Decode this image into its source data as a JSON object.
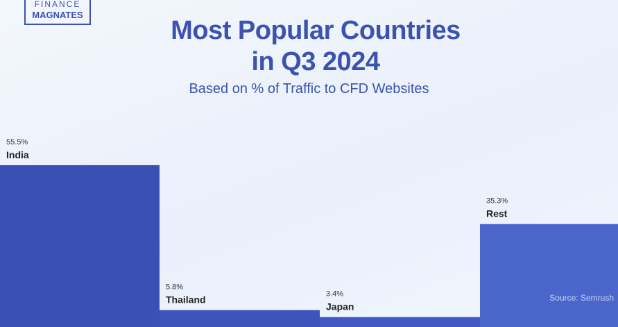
{
  "logo": {
    "line1": "FINANCE",
    "line2": "MAGNATES"
  },
  "chart_data": {
    "type": "bar",
    "title": "Most Popular Countries in Q3 2024",
    "subtitle": "Based on % of Traffic to CFD Websites",
    "categories": [
      "India",
      "Thailand",
      "Japan",
      "Rest"
    ],
    "values": [
      55.5,
      5.8,
      3.4,
      35.3
    ],
    "value_labels": [
      "55.5%",
      "5.8%",
      "3.4%",
      "35.3%"
    ],
    "colors": [
      "#3a50b3",
      "#3e54bb",
      "#4259c3",
      "#4a66cc"
    ],
    "source": "Source: Semrush"
  }
}
